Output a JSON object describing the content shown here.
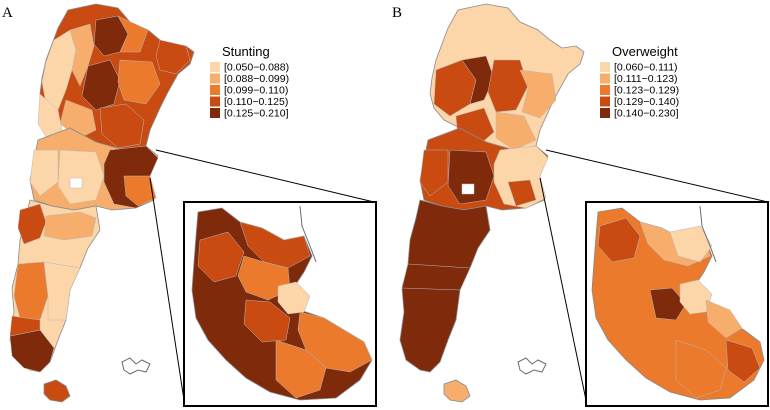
{
  "panels": [
    {
      "id": "A",
      "letter": "A",
      "legend_title": "Stunting",
      "classes": [
        {
          "label": "[0.050−0.088)",
          "color": "#fcd5a8"
        },
        {
          "label": "[0.088−0.099)",
          "color": "#f7ad6b"
        },
        {
          "label": "[0.099−0.110)",
          "color": "#ec7a2c"
        },
        {
          "label": "[0.110−0.125)",
          "color": "#c94b12"
        },
        {
          "label": "[0.125−0.210]",
          "color": "#7e2a0b"
        }
      ]
    },
    {
      "id": "B",
      "letter": "B",
      "legend_title": "Overweight",
      "classes": [
        {
          "label": "[0.060−0.111)",
          "color": "#fcd5a8"
        },
        {
          "label": "[0.111−0.123)",
          "color": "#f7ad6b"
        },
        {
          "label": "[0.123−0.129)",
          "color": "#ec7a2c"
        },
        {
          "label": "[0.129−0.140)",
          "color": "#c94b12"
        },
        {
          "label": "[0.140−0.230]",
          "color": "#7e2a0b"
        }
      ]
    }
  ],
  "colors": {
    "border": "#8a8a8a",
    "inset_frame": "#000000",
    "islands": "#6b6b6b"
  }
}
